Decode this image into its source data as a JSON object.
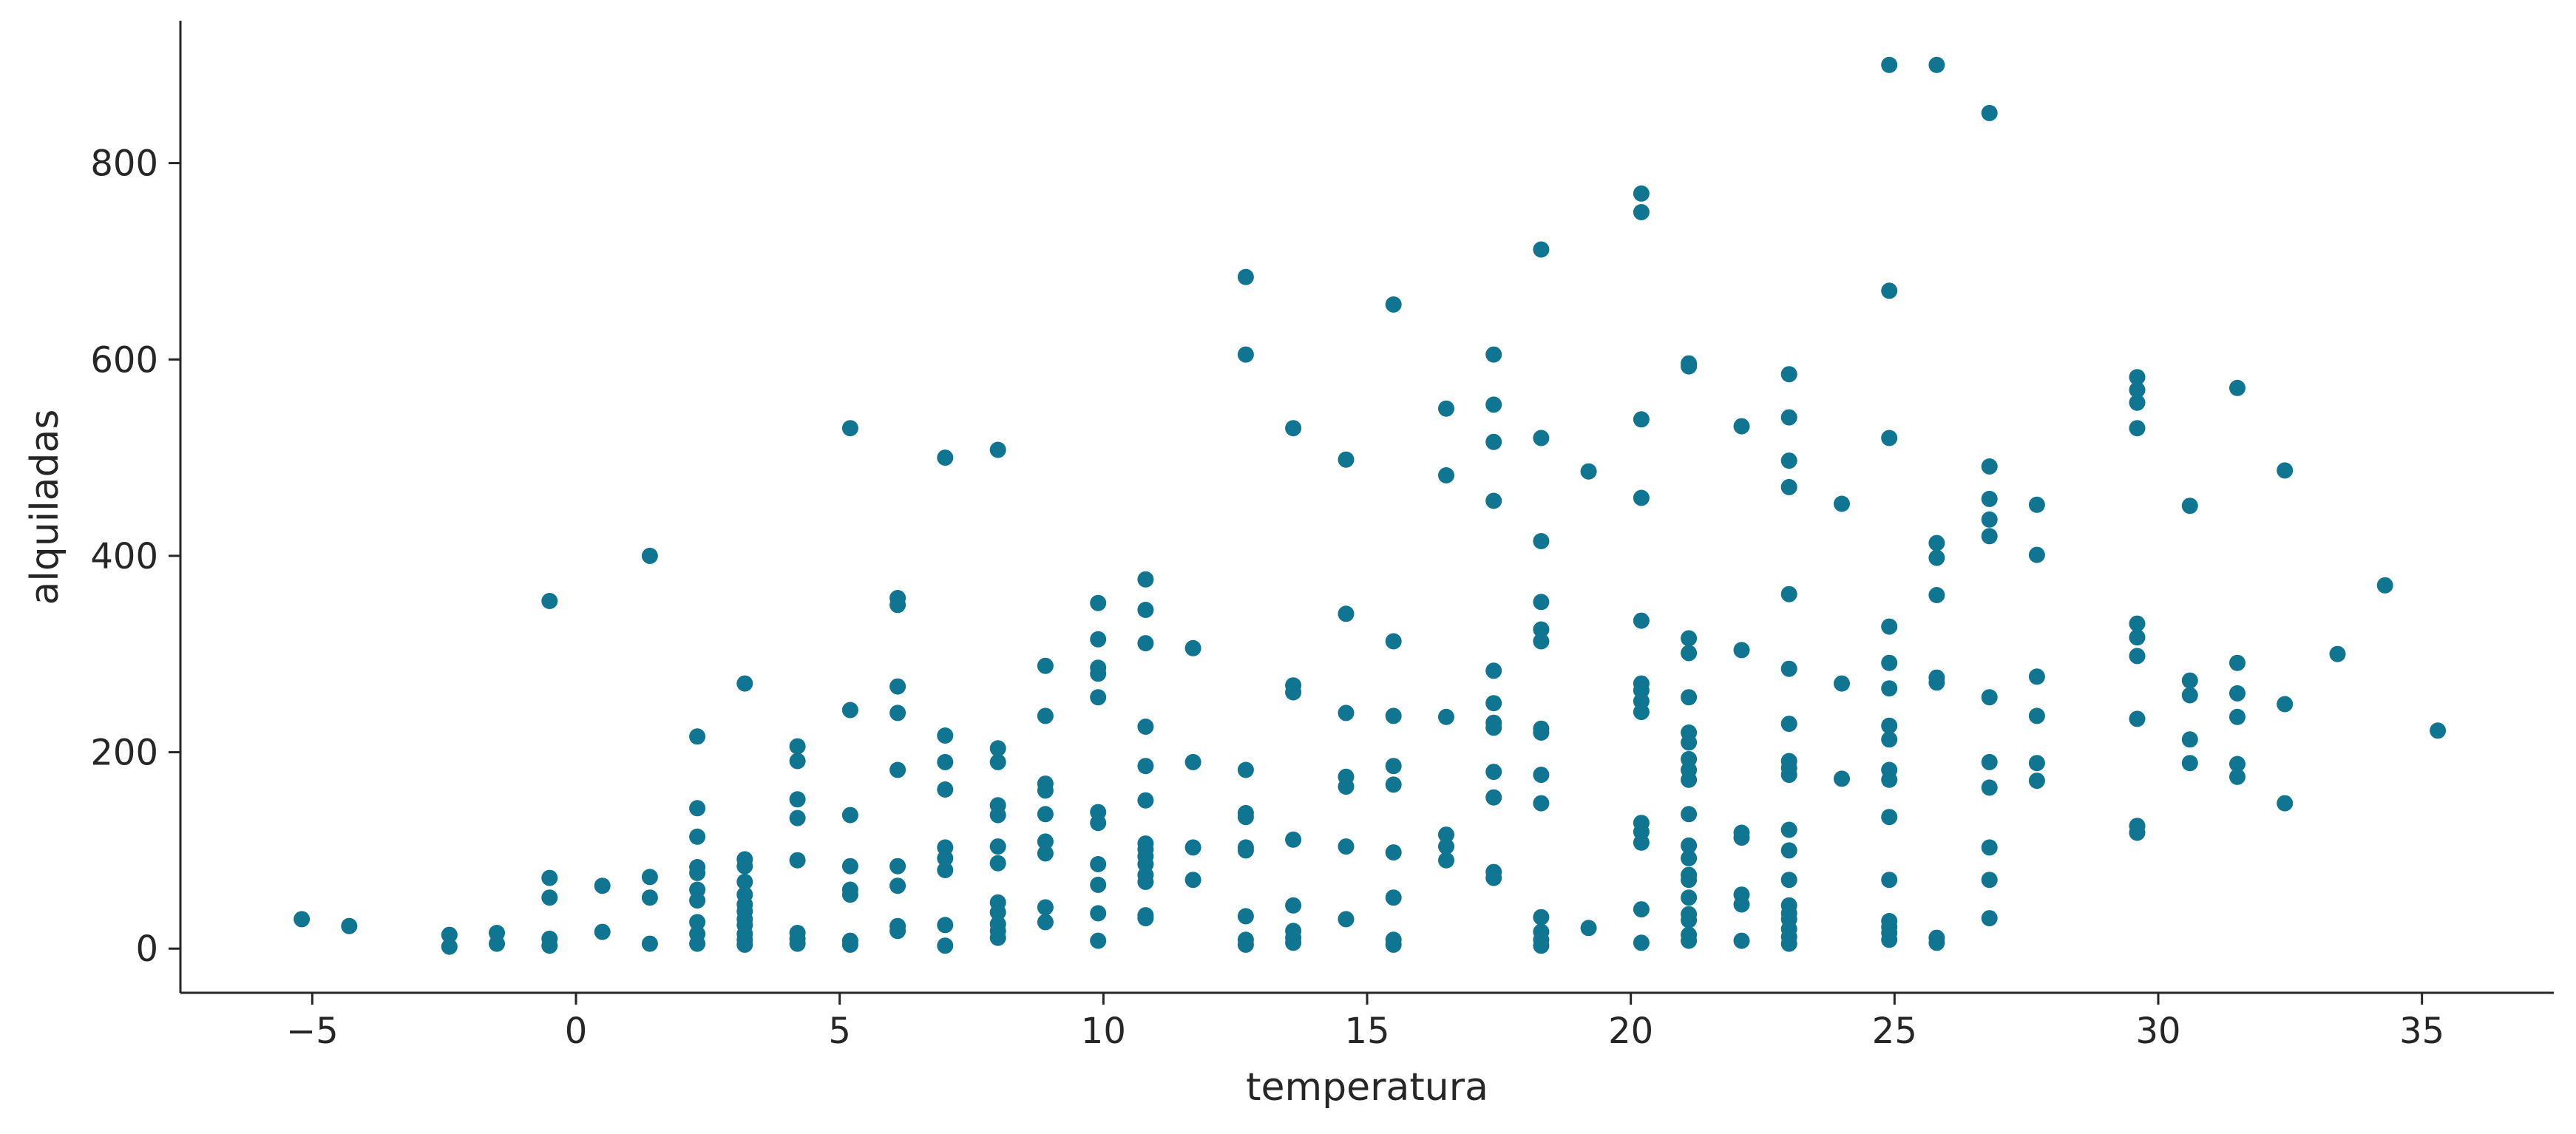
{
  "chart_data": {
    "type": "scatter",
    "title": "",
    "xlabel": "temperatura",
    "ylabel": "alquiladas",
    "xlim": [
      -7.5,
      37.5
    ],
    "ylim": [
      -45,
      945
    ],
    "x_ticks": [
      -5,
      0,
      5,
      10,
      15,
      20,
      25,
      30,
      35
    ],
    "x_tick_labels": [
      "−5",
      "0",
      "5",
      "10",
      "15",
      "20",
      "25",
      "30",
      "35"
    ],
    "y_ticks": [
      0,
      200,
      400,
      600,
      800
    ],
    "y_tick_labels": [
      "0",
      "200",
      "400",
      "600",
      "800"
    ],
    "grid": false,
    "legend": "none",
    "marker_color": "#0f7591",
    "points": [
      [
        -5.2,
        30
      ],
      [
        -4.3,
        23
      ],
      [
        -2.4,
        14
      ],
      [
        -2.4,
        2
      ],
      [
        -1.5,
        16
      ],
      [
        -1.5,
        5
      ],
      [
        -0.5,
        354
      ],
      [
        -0.5,
        72
      ],
      [
        -0.5,
        52
      ],
      [
        -0.5,
        10
      ],
      [
        -0.5,
        3
      ],
      [
        0.5,
        64
      ],
      [
        0.5,
        17
      ],
      [
        1.4,
        400
      ],
      [
        1.4,
        73
      ],
      [
        1.4,
        52
      ],
      [
        1.4,
        5
      ],
      [
        2.3,
        216
      ],
      [
        2.3,
        143
      ],
      [
        2.3,
        114
      ],
      [
        2.3,
        83
      ],
      [
        2.3,
        77
      ],
      [
        2.3,
        60
      ],
      [
        2.3,
        49
      ],
      [
        2.3,
        27
      ],
      [
        2.3,
        15
      ],
      [
        2.3,
        5
      ],
      [
        3.2,
        270
      ],
      [
        3.2,
        91
      ],
      [
        3.2,
        84
      ],
      [
        3.2,
        68
      ],
      [
        3.2,
        55
      ],
      [
        3.2,
        45
      ],
      [
        3.2,
        38
      ],
      [
        3.2,
        30
      ],
      [
        3.2,
        24
      ],
      [
        3.2,
        15
      ],
      [
        3.2,
        9
      ],
      [
        3.2,
        4
      ],
      [
        4.2,
        206
      ],
      [
        4.2,
        191
      ],
      [
        4.2,
        152
      ],
      [
        4.2,
        133
      ],
      [
        4.2,
        90
      ],
      [
        4.2,
        16
      ],
      [
        4.2,
        10
      ],
      [
        4.2,
        5
      ],
      [
        5.2,
        530
      ],
      [
        5.2,
        243
      ],
      [
        5.2,
        136
      ],
      [
        5.2,
        84
      ],
      [
        5.2,
        60
      ],
      [
        5.2,
        55
      ],
      [
        5.2,
        8
      ],
      [
        5.2,
        4
      ],
      [
        6.1,
        357
      ],
      [
        6.1,
        350
      ],
      [
        6.1,
        267
      ],
      [
        6.1,
        240
      ],
      [
        6.1,
        182
      ],
      [
        6.1,
        84
      ],
      [
        6.1,
        64
      ],
      [
        6.1,
        23
      ],
      [
        6.1,
        18
      ],
      [
        7.0,
        500
      ],
      [
        7.0,
        217
      ],
      [
        7.0,
        190
      ],
      [
        7.0,
        162
      ],
      [
        7.0,
        103
      ],
      [
        7.0,
        92
      ],
      [
        7.0,
        80
      ],
      [
        7.0,
        24
      ],
      [
        7.0,
        3
      ],
      [
        8.0,
        508
      ],
      [
        8.0,
        204
      ],
      [
        8.0,
        190
      ],
      [
        8.0,
        146
      ],
      [
        8.0,
        136
      ],
      [
        8.0,
        104
      ],
      [
        8.0,
        87
      ],
      [
        8.0,
        47
      ],
      [
        8.0,
        37
      ],
      [
        8.0,
        25
      ],
      [
        8.0,
        18
      ],
      [
        8.0,
        11
      ],
      [
        8.9,
        288
      ],
      [
        8.9,
        237
      ],
      [
        8.9,
        168
      ],
      [
        8.9,
        161
      ],
      [
        8.9,
        137
      ],
      [
        8.9,
        109
      ],
      [
        8.9,
        97
      ],
      [
        8.9,
        42
      ],
      [
        8.9,
        27
      ],
      [
        9.9,
        352
      ],
      [
        9.9,
        315
      ],
      [
        9.9,
        286
      ],
      [
        9.9,
        280
      ],
      [
        9.9,
        256
      ],
      [
        9.9,
        139
      ],
      [
        9.9,
        128
      ],
      [
        9.9,
        86
      ],
      [
        9.9,
        65
      ],
      [
        9.9,
        36
      ],
      [
        9.9,
        8
      ],
      [
        10.8,
        376
      ],
      [
        10.8,
        345
      ],
      [
        10.8,
        311
      ],
      [
        10.8,
        226
      ],
      [
        10.8,
        186
      ],
      [
        10.8,
        151
      ],
      [
        10.8,
        107
      ],
      [
        10.8,
        101
      ],
      [
        10.8,
        94
      ],
      [
        10.8,
        86
      ],
      [
        10.8,
        75
      ],
      [
        10.8,
        68
      ],
      [
        10.8,
        34
      ],
      [
        10.8,
        31
      ],
      [
        11.7,
        306
      ],
      [
        11.7,
        190
      ],
      [
        11.7,
        103
      ],
      [
        11.7,
        70
      ],
      [
        12.7,
        684
      ],
      [
        12.7,
        605
      ],
      [
        12.7,
        182
      ],
      [
        12.7,
        138
      ],
      [
        12.7,
        134
      ],
      [
        12.7,
        103
      ],
      [
        12.7,
        100
      ],
      [
        12.7,
        33
      ],
      [
        12.7,
        9
      ],
      [
        12.7,
        4
      ],
      [
        13.6,
        530
      ],
      [
        13.6,
        268
      ],
      [
        13.6,
        261
      ],
      [
        13.6,
        111
      ],
      [
        13.6,
        44
      ],
      [
        13.6,
        18
      ],
      [
        13.6,
        11
      ],
      [
        13.6,
        6
      ],
      [
        14.6,
        498
      ],
      [
        14.6,
        341
      ],
      [
        14.6,
        240
      ],
      [
        14.6,
        175
      ],
      [
        14.6,
        165
      ],
      [
        14.6,
        104
      ],
      [
        14.6,
        30
      ],
      [
        15.5,
        656
      ],
      [
        15.5,
        313
      ],
      [
        15.5,
        237
      ],
      [
        15.5,
        186
      ],
      [
        15.5,
        167
      ],
      [
        15.5,
        98
      ],
      [
        15.5,
        52
      ],
      [
        15.5,
        9
      ],
      [
        15.5,
        4
      ],
      [
        16.5,
        550
      ],
      [
        16.5,
        482
      ],
      [
        16.5,
        236
      ],
      [
        16.5,
        116
      ],
      [
        16.5,
        104
      ],
      [
        16.5,
        90
      ],
      [
        17.4,
        605
      ],
      [
        17.4,
        554
      ],
      [
        17.4,
        516
      ],
      [
        17.4,
        456
      ],
      [
        17.4,
        283
      ],
      [
        17.4,
        250
      ],
      [
        17.4,
        230
      ],
      [
        17.4,
        225
      ],
      [
        17.4,
        180
      ],
      [
        17.4,
        154
      ],
      [
        17.4,
        78
      ],
      [
        17.4,
        72
      ],
      [
        18.3,
        712
      ],
      [
        18.3,
        520
      ],
      [
        18.3,
        415
      ],
      [
        18.3,
        353
      ],
      [
        18.3,
        325
      ],
      [
        18.3,
        313
      ],
      [
        18.3,
        224
      ],
      [
        18.3,
        220
      ],
      [
        18.3,
        177
      ],
      [
        18.3,
        148
      ],
      [
        18.3,
        32
      ],
      [
        18.3,
        17
      ],
      [
        18.3,
        9
      ],
      [
        18.3,
        3
      ],
      [
        19.2,
        486
      ],
      [
        19.2,
        21
      ],
      [
        20.2,
        769
      ],
      [
        20.2,
        750
      ],
      [
        20.2,
        539
      ],
      [
        20.2,
        459
      ],
      [
        20.2,
        334
      ],
      [
        20.2,
        270
      ],
      [
        20.2,
        263
      ],
      [
        20.2,
        252
      ],
      [
        20.2,
        241
      ],
      [
        20.2,
        128
      ],
      [
        20.2,
        119
      ],
      [
        20.2,
        108
      ],
      [
        20.2,
        40
      ],
      [
        20.2,
        6
      ],
      [
        21.1,
        596
      ],
      [
        21.1,
        593
      ],
      [
        21.1,
        316
      ],
      [
        21.1,
        301
      ],
      [
        21.1,
        256
      ],
      [
        21.1,
        220
      ],
      [
        21.1,
        210
      ],
      [
        21.1,
        193
      ],
      [
        21.1,
        182
      ],
      [
        21.1,
        172
      ],
      [
        21.1,
        137
      ],
      [
        21.1,
        105
      ],
      [
        21.1,
        92
      ],
      [
        21.1,
        75
      ],
      [
        21.1,
        70
      ],
      [
        21.1,
        52
      ],
      [
        21.1,
        35
      ],
      [
        21.1,
        29
      ],
      [
        21.1,
        14
      ],
      [
        21.1,
        8
      ],
      [
        22.1,
        532
      ],
      [
        22.1,
        304
      ],
      [
        22.1,
        118
      ],
      [
        22.1,
        113
      ],
      [
        22.1,
        55
      ],
      [
        22.1,
        45
      ],
      [
        22.1,
        8
      ],
      [
        23.0,
        585
      ],
      [
        23.0,
        541
      ],
      [
        23.0,
        497
      ],
      [
        23.0,
        470
      ],
      [
        23.0,
        361
      ],
      [
        23.0,
        285
      ],
      [
        23.0,
        229
      ],
      [
        23.0,
        191
      ],
      [
        23.0,
        184
      ],
      [
        23.0,
        177
      ],
      [
        23.0,
        121
      ],
      [
        23.0,
        100
      ],
      [
        23.0,
        70
      ],
      [
        23.0,
        44
      ],
      [
        23.0,
        36
      ],
      [
        23.0,
        30
      ],
      [
        23.0,
        20
      ],
      [
        23.0,
        12
      ],
      [
        23.0,
        5
      ],
      [
        24.0,
        453
      ],
      [
        24.0,
        270
      ],
      [
        24.0,
        173
      ],
      [
        24.9,
        900
      ],
      [
        24.9,
        670
      ],
      [
        24.9,
        520
      ],
      [
        24.9,
        328
      ],
      [
        24.9,
        291
      ],
      [
        24.9,
        265
      ],
      [
        24.9,
        227
      ],
      [
        24.9,
        213
      ],
      [
        24.9,
        182
      ],
      [
        24.9,
        172
      ],
      [
        24.9,
        134
      ],
      [
        24.9,
        70
      ],
      [
        24.9,
        28
      ],
      [
        24.9,
        22
      ],
      [
        24.9,
        16
      ],
      [
        24.9,
        9
      ],
      [
        25.8,
        900
      ],
      [
        25.8,
        413
      ],
      [
        25.8,
        398
      ],
      [
        25.8,
        360
      ],
      [
        25.8,
        276
      ],
      [
        25.8,
        271
      ],
      [
        25.8,
        11
      ],
      [
        25.8,
        6
      ],
      [
        26.8,
        851
      ],
      [
        26.8,
        491
      ],
      [
        26.8,
        458
      ],
      [
        26.8,
        437
      ],
      [
        26.8,
        420
      ],
      [
        26.8,
        256
      ],
      [
        26.8,
        190
      ],
      [
        26.8,
        164
      ],
      [
        26.8,
        103
      ],
      [
        26.8,
        70
      ],
      [
        26.8,
        31
      ],
      [
        27.7,
        452
      ],
      [
        27.7,
        401
      ],
      [
        27.7,
        277
      ],
      [
        27.7,
        237
      ],
      [
        27.7,
        189
      ],
      [
        27.7,
        171
      ],
      [
        29.6,
        582
      ],
      [
        29.6,
        569
      ],
      [
        29.6,
        556
      ],
      [
        29.6,
        530
      ],
      [
        29.6,
        331
      ],
      [
        29.6,
        317
      ],
      [
        29.6,
        298
      ],
      [
        29.6,
        234
      ],
      [
        29.6,
        125
      ],
      [
        29.6,
        118
      ],
      [
        30.6,
        451
      ],
      [
        30.6,
        273
      ],
      [
        30.6,
        258
      ],
      [
        30.6,
        213
      ],
      [
        30.6,
        189
      ],
      [
        31.5,
        571
      ],
      [
        31.5,
        291
      ],
      [
        31.5,
        260
      ],
      [
        31.5,
        236
      ],
      [
        31.5,
        188
      ],
      [
        31.5,
        175
      ],
      [
        32.4,
        487
      ],
      [
        32.4,
        249
      ],
      [
        32.4,
        148
      ],
      [
        33.4,
        300
      ],
      [
        34.3,
        370
      ],
      [
        35.3,
        222
      ]
    ]
  }
}
